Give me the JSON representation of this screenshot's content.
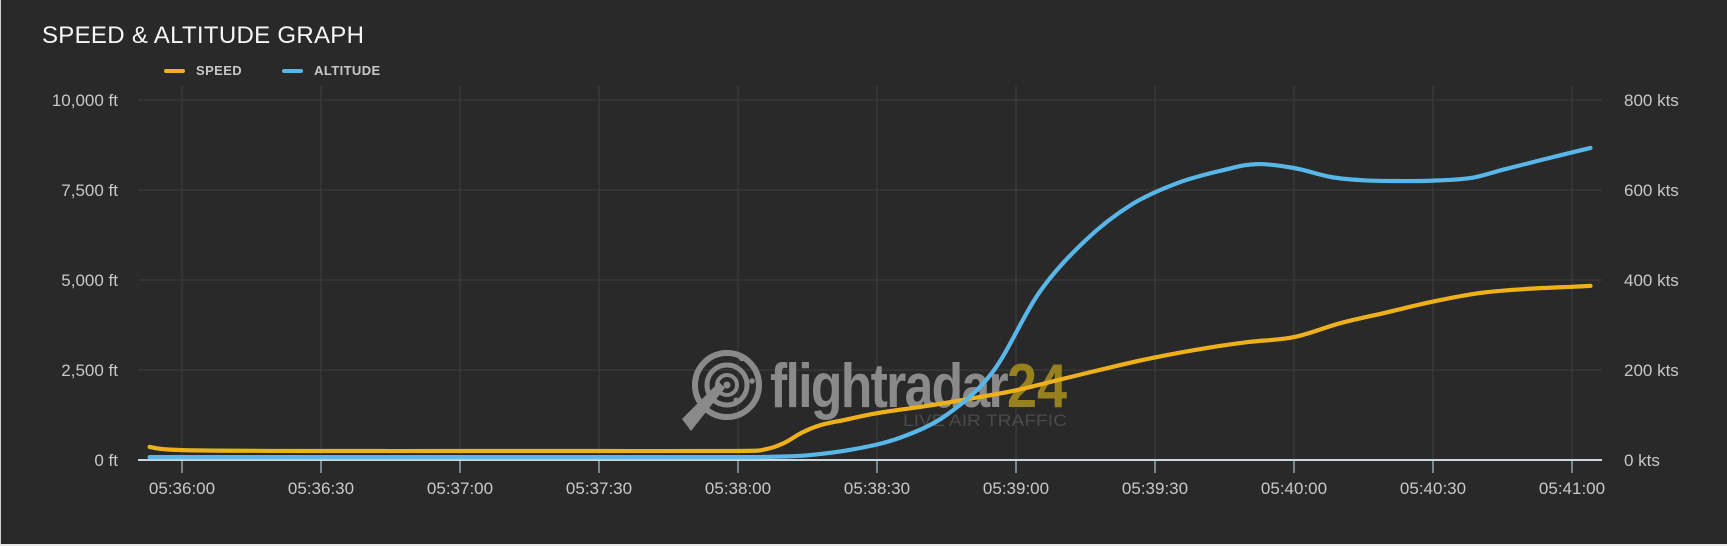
{
  "header": {
    "title": "SPEED & ALTITUDE GRAPH"
  },
  "legend": [
    {
      "label": "SPEED",
      "color": "#eeb119"
    },
    {
      "label": "ALTITUDE",
      "color": "#58b7e8"
    }
  ],
  "watermark": {
    "brand": "flightradar",
    "brand_suffix": "24",
    "tagline": "LIVE AIR TRAFFIC"
  },
  "colors": {
    "background": "#292929",
    "grid": "#3e3e3e",
    "axis_line": "#ccd6dd",
    "axis_tick": "#93a5b1",
    "tick_text": "#c8c8c8",
    "title_text": "#f7f7f7",
    "speed": "#eeb119",
    "altitude": "#58b7e8",
    "watermark_gray": "#8a8a8a",
    "watermark_gold": "#97801f",
    "tagline_text": "#4a4a4a"
  },
  "chart_data": {
    "type": "line",
    "title": "SPEED & ALTITUDE GRAPH",
    "grid": true,
    "legend_position": "top-left",
    "x_domain": [
      "05:35:53",
      "05:41:04"
    ],
    "x_ticks": [
      "05:36:00",
      "05:36:30",
      "05:37:00",
      "05:37:30",
      "05:38:00",
      "05:38:30",
      "05:39:00",
      "05:39:30",
      "05:40:00",
      "05:40:30",
      "05:41:00"
    ],
    "y_left": {
      "unit": "ft",
      "min": 0,
      "max": 10000,
      "tick_labels": [
        "10,000 ft",
        "7,500 ft",
        "5,000 ft",
        "2,500 ft",
        "0 ft"
      ],
      "tick_values": [
        10000,
        7500,
        5000,
        2500,
        0
      ]
    },
    "y_right": {
      "unit": "kts",
      "min": 0,
      "max": 800,
      "tick_labels": [
        "800 kts",
        "600 kts",
        "400 kts",
        "200 kts",
        "0 kts"
      ],
      "tick_values": [
        800,
        600,
        400,
        200,
        0
      ]
    },
    "series": [
      {
        "name": "SPEED",
        "unit": "kts",
        "axis": "right",
        "color": "#eeb119",
        "points": [
          [
            "05:35:53",
            29
          ],
          [
            "05:36:00",
            22
          ],
          [
            "05:36:30",
            20
          ],
          [
            "05:37:00",
            20
          ],
          [
            "05:37:30",
            20
          ],
          [
            "05:38:00",
            20
          ],
          [
            "05:38:06",
            24
          ],
          [
            "05:38:10",
            38
          ],
          [
            "05:38:14",
            62
          ],
          [
            "05:38:18",
            78
          ],
          [
            "05:38:23",
            89
          ],
          [
            "05:38:30",
            104
          ],
          [
            "05:38:40",
            119
          ],
          [
            "05:38:50",
            136
          ],
          [
            "05:39:00",
            155
          ],
          [
            "05:39:10",
            180
          ],
          [
            "05:39:20",
            205
          ],
          [
            "05:39:30",
            228
          ],
          [
            "05:39:40",
            247
          ],
          [
            "05:39:50",
            262
          ],
          [
            "05:40:00",
            273
          ],
          [
            "05:40:10",
            304
          ],
          [
            "05:40:20",
            328
          ],
          [
            "05:40:30",
            352
          ],
          [
            "05:40:40",
            371
          ],
          [
            "05:40:50",
            380
          ],
          [
            "05:41:00",
            385
          ],
          [
            "05:41:04",
            387
          ]
        ]
      },
      {
        "name": "ALTITUDE",
        "unit": "ft",
        "axis": "left",
        "color": "#58b7e8",
        "points": [
          [
            "05:35:53",
            80
          ],
          [
            "05:36:00",
            80
          ],
          [
            "05:36:30",
            80
          ],
          [
            "05:37:00",
            80
          ],
          [
            "05:37:30",
            80
          ],
          [
            "05:38:00",
            80
          ],
          [
            "05:38:06",
            85
          ],
          [
            "05:38:15",
            130
          ],
          [
            "05:38:25",
            300
          ],
          [
            "05:38:35",
            620
          ],
          [
            "05:38:45",
            1250
          ],
          [
            "05:38:55",
            2450
          ],
          [
            "05:39:05",
            4650
          ],
          [
            "05:39:15",
            6100
          ],
          [
            "05:39:25",
            7100
          ],
          [
            "05:39:35",
            7700
          ],
          [
            "05:39:45",
            8060
          ],
          [
            "05:39:52",
            8220
          ],
          [
            "05:40:00",
            8110
          ],
          [
            "05:40:08",
            7860
          ],
          [
            "05:40:15",
            7770
          ],
          [
            "05:40:22",
            7750
          ],
          [
            "05:40:30",
            7760
          ],
          [
            "05:40:38",
            7830
          ],
          [
            "05:40:45",
            8060
          ],
          [
            "05:40:52",
            8290
          ],
          [
            "05:40:58",
            8480
          ],
          [
            "05:41:04",
            8670
          ]
        ]
      }
    ]
  }
}
